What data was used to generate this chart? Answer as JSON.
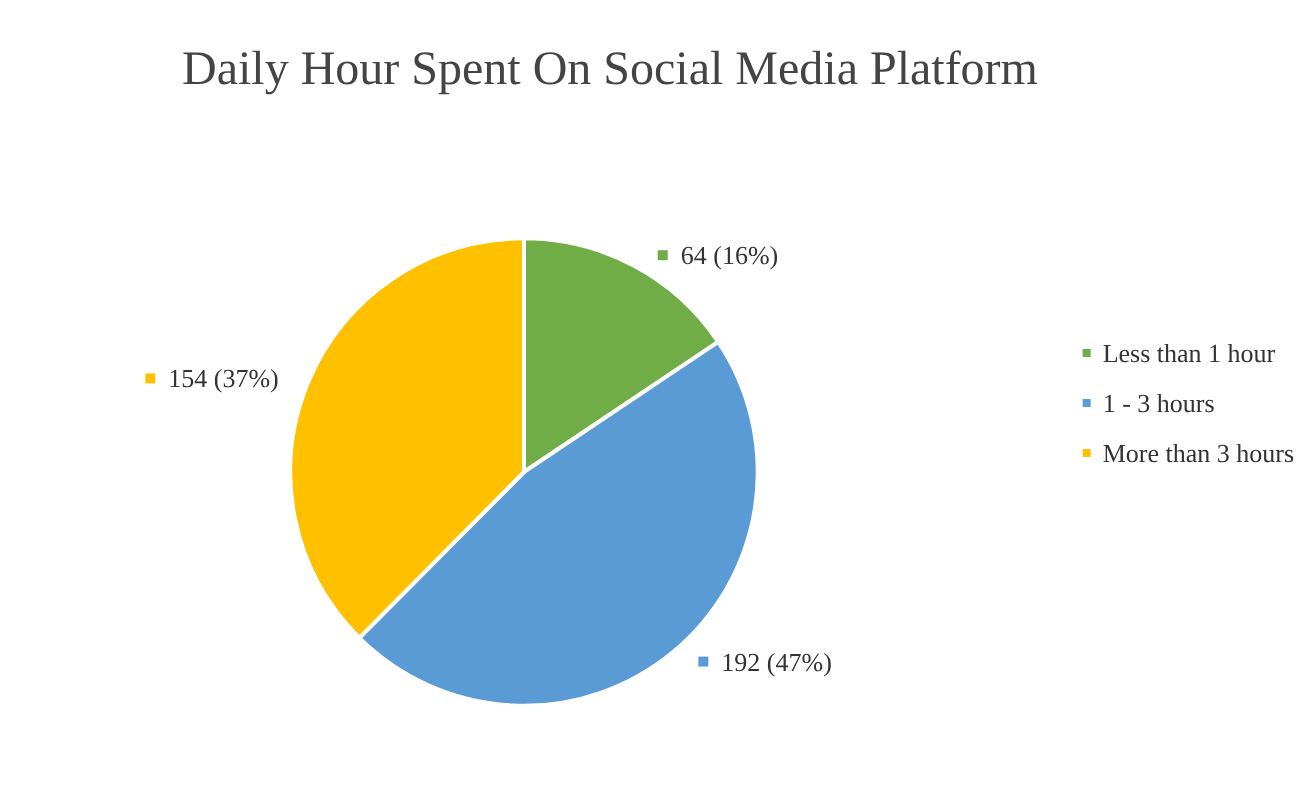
{
  "chart_data": {
    "type": "pie",
    "title": "Daily Hour Spent On Social Media Platform",
    "categories": [
      "Less than 1 hour",
      "1 - 3 hours",
      "More than 3 hours"
    ],
    "values": [
      64,
      192,
      154
    ],
    "colors": [
      "#70ad47",
      "#5b9bd5",
      "#ffc000"
    ],
    "value_labels": [
      "64 (16%)",
      "192 (47%)",
      "154 (37%)"
    ],
    "legend": "right"
  }
}
